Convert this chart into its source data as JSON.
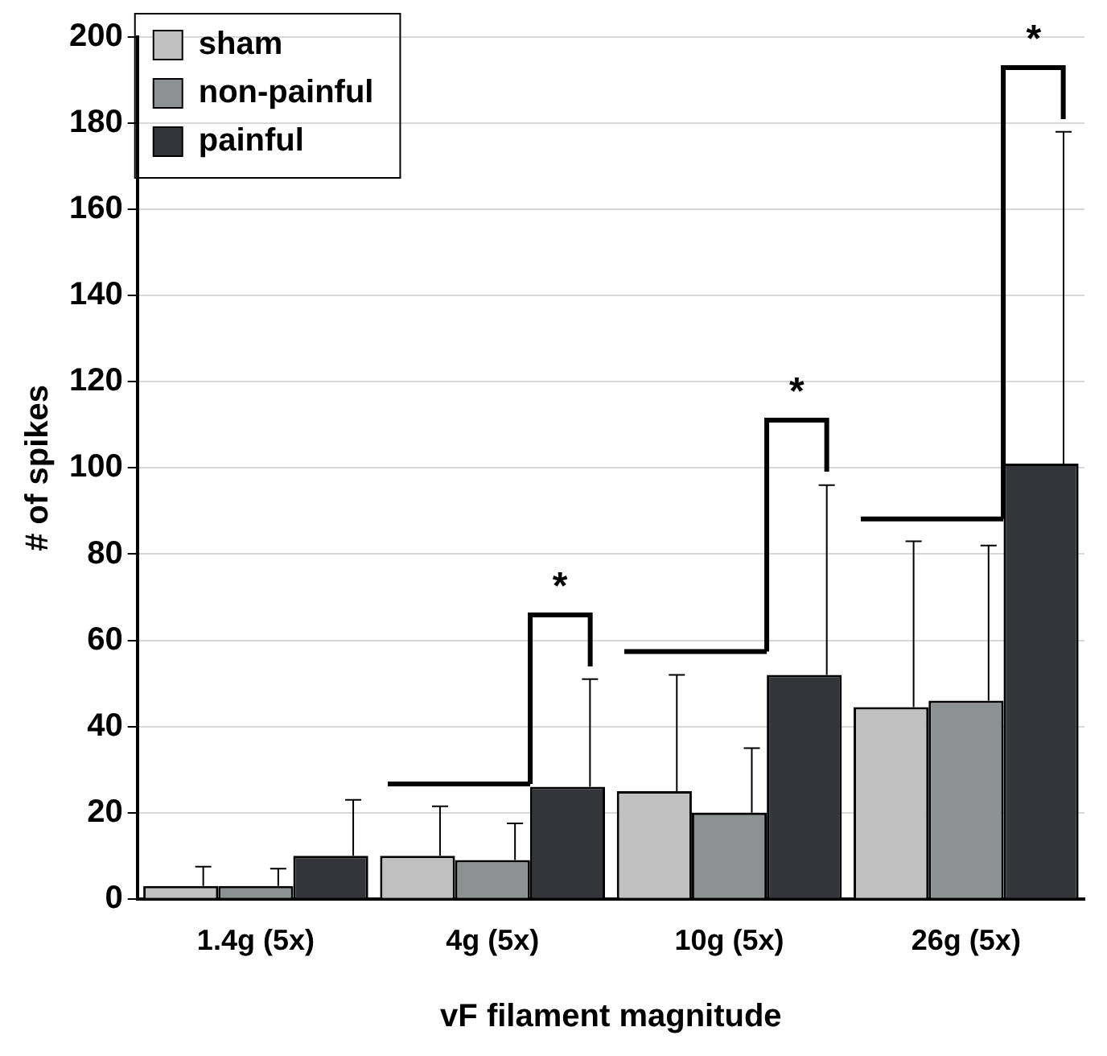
{
  "chart_data": {
    "type": "bar",
    "xlabel": "vF filament magnitude",
    "ylabel": "# of spikes",
    "categories": [
      "1.4g (5x)",
      "4g (5x)",
      "10g (5x)",
      "26g (5x)"
    ],
    "series": [
      {
        "name": "sham",
        "color": "#c0c0c0",
        "values": [
          3,
          10,
          25,
          44.5
        ],
        "errors": [
          [
            3,
            7.5
          ],
          [
            10,
            21.5
          ],
          [
            25,
            52
          ],
          [
            44.5,
            83
          ]
        ]
      },
      {
        "name": "non-painful",
        "color": "#8c9191",
        "values": [
          3,
          9,
          20,
          46
        ],
        "errors": [
          [
            3,
            7
          ],
          [
            9,
            17.5
          ],
          [
            20,
            35
          ],
          [
            46,
            82
          ]
        ]
      },
      {
        "name": "painful",
        "color": "#333538",
        "values": [
          10,
          26,
          52,
          101
        ],
        "errors": [
          [
            10,
            23
          ],
          [
            26,
            51
          ],
          [
            52,
            96
          ],
          [
            101,
            178
          ]
        ]
      }
    ],
    "ylim": [
      0,
      200
    ],
    "yticks": [
      0,
      20,
      40,
      60,
      80,
      100,
      120,
      140,
      160,
      180,
      200
    ],
    "grid": "y",
    "legend": "top left",
    "annotations": [
      "*",
      "*",
      "*"
    ]
  }
}
